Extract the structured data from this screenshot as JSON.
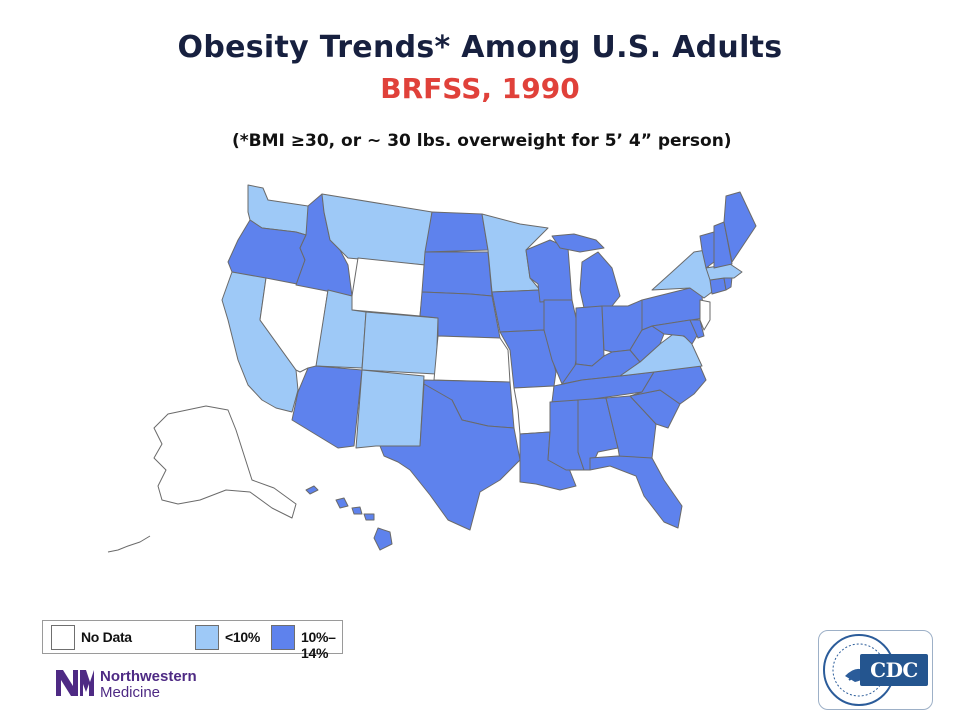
{
  "title": "Obesity Trends* Among U.S. Adults",
  "subtitle": "BRFSS, 1990",
  "note": "(*BMI ≥30, or ~ 30 lbs. overweight for 5’ 4” person)",
  "legend": {
    "items": [
      {
        "label": "No Data",
        "color": "#ffffff"
      },
      {
        "label": "<10%",
        "color": "#9ec9f7"
      },
      {
        "label": "10%–14%",
        "color": "#5e82ed"
      }
    ]
  },
  "colors": {
    "no_data": "#ffffff",
    "under_10": "#9ec9f7",
    "10_to_14": "#5e82ed",
    "title": "#17203f",
    "subtitle": "#e0413a"
  },
  "states": {
    "no_data": [
      "Wyoming",
      "Nevada",
      "Kansas",
      "Arkansas",
      "New Jersey",
      "Alaska"
    ],
    "under_10": [
      "Washington",
      "Montana",
      "Minnesota",
      "California",
      "Utah",
      "Colorado",
      "New Mexico",
      "New York",
      "Virginia",
      "Massachusetts"
    ],
    "10_to_14": [
      "Oregon",
      "Idaho",
      "North Dakota",
      "South Dakota",
      "Nebraska",
      "Iowa",
      "Missouri",
      "Wisconsin",
      "Illinois",
      "Michigan",
      "Indiana",
      "Ohio",
      "Kentucky",
      "Tennessee",
      "Mississippi",
      "Alabama",
      "Georgia",
      "Florida",
      "South Carolina",
      "North Carolina",
      "West Virginia",
      "Pennsylvania",
      "Maryland",
      "Delaware",
      "Vermont",
      "New Hampshire",
      "Maine",
      "Connecticut",
      "Rhode Island",
      "Arizona",
      "Texas",
      "Oklahoma",
      "Louisiana",
      "Hawaii"
    ]
  },
  "logos": {
    "northwestern_line1": "Northwestern",
    "northwestern_line2": "Medicine",
    "cdc_text": "CDC"
  }
}
